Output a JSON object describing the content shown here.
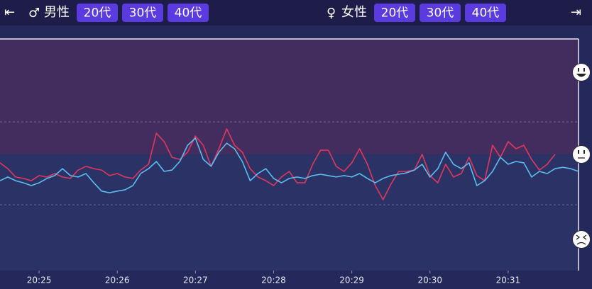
{
  "header": {
    "left_arrow": "⇤",
    "right_arrow": "⇥",
    "male_symbol": "♂",
    "male_label": "男性",
    "male_buttons": [
      "20代",
      "30代",
      "40代"
    ],
    "female_symbol": "♀",
    "female_label": "女性",
    "female_buttons": [
      "20代",
      "30代",
      "40代"
    ]
  },
  "chart_data": {
    "type": "line",
    "xlim": [
      1224.5,
      1231.9
    ],
    "xticks": [
      {
        "value": 1225,
        "label": "20:25"
      },
      {
        "value": 1226,
        "label": "20:26"
      },
      {
        "value": 1227,
        "label": "20:27"
      },
      {
        "value": 1228,
        "label": "20:28"
      },
      {
        "value": 1229,
        "label": "20:29"
      },
      {
        "value": 1230,
        "label": "20:30"
      },
      {
        "value": 1231,
        "label": "20:31"
      }
    ],
    "ylim": [
      0,
      100
    ],
    "grid_lines": [
      28.4,
      64.2
    ],
    "band_split": 50.2,
    "x": [
      1224.5,
      1224.6,
      1224.7,
      1224.8,
      1224.9,
      1225.0,
      1225.1,
      1225.2,
      1225.3,
      1225.4,
      1225.5,
      1225.6,
      1225.7,
      1225.8,
      1225.9,
      1226.0,
      1226.1,
      1226.2,
      1226.3,
      1226.4,
      1226.5,
      1226.6,
      1226.7,
      1226.8,
      1226.9,
      1227.0,
      1227.1,
      1227.2,
      1227.3,
      1227.4,
      1227.5,
      1227.6,
      1227.7,
      1227.8,
      1227.9,
      1228.0,
      1228.1,
      1228.2,
      1228.3,
      1228.4,
      1228.5,
      1228.6,
      1228.7,
      1228.8,
      1228.9,
      1229.0,
      1229.1,
      1229.2,
      1229.3,
      1229.4,
      1229.5,
      1229.6,
      1229.7,
      1229.8,
      1229.9,
      1230.0,
      1230.1,
      1230.2,
      1230.3,
      1230.4,
      1230.5,
      1230.6,
      1230.7,
      1230.8,
      1230.9,
      1231.0,
      1231.1,
      1231.2,
      1231.3,
      1231.4,
      1231.5,
      1231.6,
      1231.7,
      1231.8,
      1231.9
    ],
    "series": [
      {
        "color": "#e0385c",
        "values": [
          46.5,
          44.0,
          40.4,
          39.8,
          38.8,
          41.0,
          40.4,
          41.9,
          40.4,
          39.8,
          43.4,
          45.0,
          44.0,
          43.4,
          41.0,
          41.9,
          40.4,
          39.8,
          43.4,
          45.9,
          59.3,
          55.7,
          48.9,
          48.0,
          51.1,
          58.1,
          54.1,
          45.0,
          52.6,
          61.2,
          54.1,
          51.1,
          44.0,
          40.4,
          38.8,
          36.7,
          40.4,
          42.8,
          37.9,
          37.9,
          45.9,
          52.0,
          52.0,
          45.0,
          42.8,
          46.5,
          52.6,
          45.9,
          36.7,
          30.6,
          37.3,
          42.8,
          42.8,
          43.4,
          50.2,
          41.0,
          37.9,
          45.9,
          40.4,
          41.9,
          48.9,
          41.0,
          38.8,
          54.1,
          48.9,
          55.7,
          52.6,
          54.1,
          48.0,
          43.4,
          45.9,
          50.2,
          null,
          null,
          null
        ]
      },
      {
        "color": "#5cbdf0",
        "values": [
          38.8,
          40.4,
          38.8,
          37.9,
          36.7,
          37.9,
          39.8,
          41.0,
          44.0,
          41.0,
          40.4,
          41.9,
          37.9,
          34.3,
          33.6,
          34.3,
          34.9,
          36.7,
          41.9,
          44.0,
          47.1,
          42.8,
          43.4,
          47.1,
          54.1,
          57.2,
          48.0,
          45.0,
          51.1,
          55.0,
          52.6,
          47.1,
          38.8,
          41.9,
          44.0,
          39.8,
          37.9,
          39.8,
          40.4,
          39.8,
          41.0,
          41.6,
          41.0,
          40.4,
          41.0,
          40.4,
          41.9,
          39.8,
          37.9,
          39.8,
          41.0,
          41.6,
          42.2,
          43.4,
          45.9,
          40.4,
          44.0,
          51.1,
          45.9,
          44.0,
          46.5,
          36.7,
          38.8,
          42.8,
          48.9,
          45.9,
          47.1,
          46.5,
          40.4,
          42.8,
          41.9,
          44.0,
          44.6,
          44.0,
          42.8
        ]
      }
    ]
  }
}
